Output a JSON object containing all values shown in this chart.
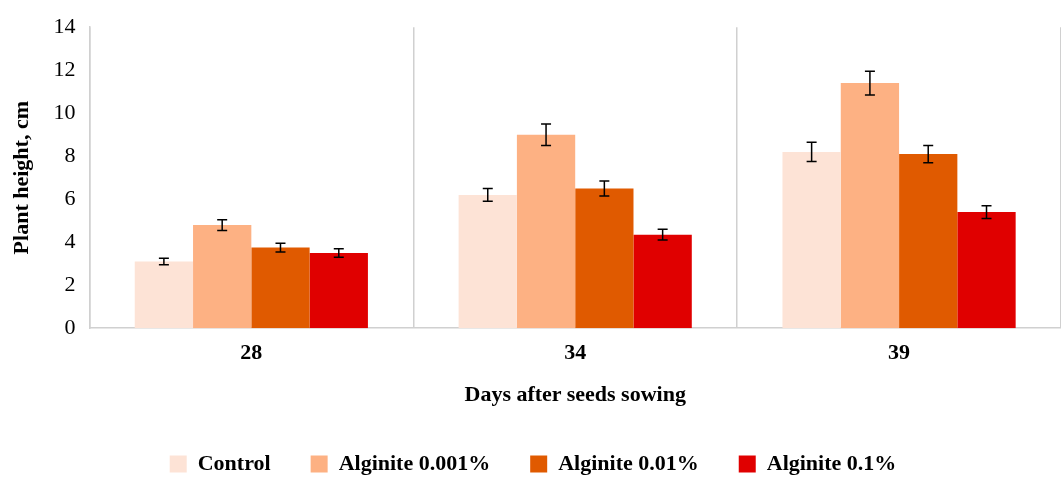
{
  "chart_data": {
    "type": "bar",
    "xlabel": "Days after seeds sowing",
    "ylabel": "Plant height, cm",
    "categories": [
      "28",
      "34",
      "39"
    ],
    "series": [
      {
        "name": "Control",
        "color": "#fde3d6",
        "values": [
          3.1,
          6.2,
          8.2
        ],
        "errors": [
          0.15,
          0.3,
          0.45
        ]
      },
      {
        "name": "Alginite 0.001%",
        "color": "#fdb183",
        "values": [
          4.8,
          9.0,
          11.4
        ],
        "errors": [
          0.25,
          0.5,
          0.55
        ]
      },
      {
        "name": "Alginite 0.01%",
        "color": "#e05a00",
        "values": [
          3.75,
          6.5,
          8.1
        ],
        "errors": [
          0.2,
          0.35,
          0.4
        ]
      },
      {
        "name": "Alginite 0.1%",
        "color": "#e00000",
        "values": [
          3.5,
          4.35,
          5.4
        ],
        "errors": [
          0.2,
          0.25,
          0.3
        ]
      }
    ],
    "ylim": [
      0,
      14
    ],
    "yticks": [
      0,
      2,
      4,
      6,
      8,
      10,
      12,
      14
    ],
    "grid": "x",
    "legend": "bottom"
  }
}
